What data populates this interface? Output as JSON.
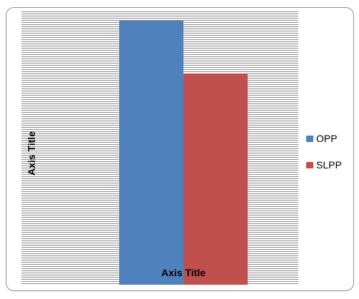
{
  "chart_data": {
    "type": "bar",
    "categories": [
      ""
    ],
    "series": [
      {
        "name": "OPP",
        "values": [
          1.0
        ],
        "color": "#4f81bd"
      },
      {
        "name": "SLPP",
        "values": [
          0.8
        ],
        "color": "#c0504d"
      }
    ],
    "xlabel": "Axis Title",
    "ylabel": "Axis Title",
    "ylim": [
      0,
      1.0
    ],
    "grid": true,
    "legend_position": "right"
  }
}
